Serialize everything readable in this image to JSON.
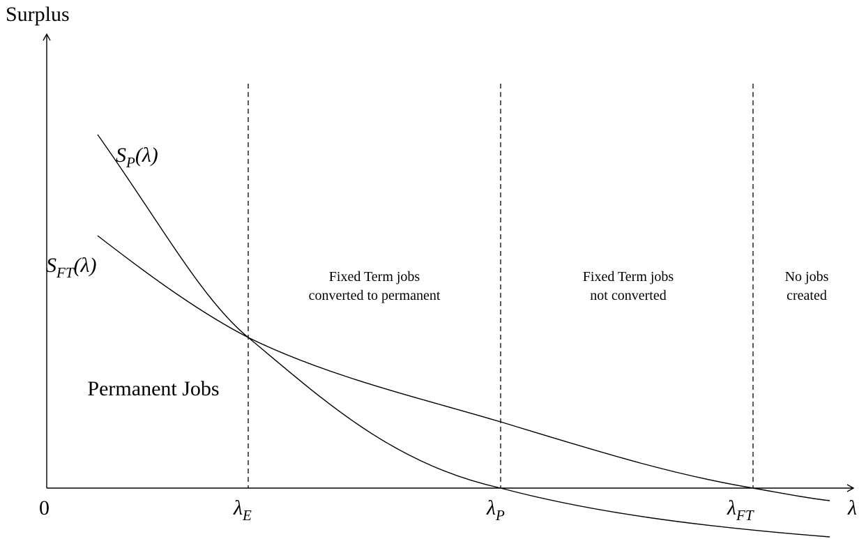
{
  "axes": {
    "y_label": "Surplus",
    "x_label": "λ",
    "origin": "0"
  },
  "thresholds": [
    {
      "base": "λ",
      "sub": "E"
    },
    {
      "base": "λ",
      "sub": "P"
    },
    {
      "base": "λ",
      "sub": "FT"
    }
  ],
  "curves": [
    {
      "base": "S",
      "sub": "P",
      "arg": "(λ)"
    },
    {
      "base": "S",
      "sub": "FT",
      "arg": "(λ)"
    }
  ],
  "regions": [
    {
      "lines": [
        "Permanent Jobs"
      ]
    },
    {
      "lines": [
        "Fixed Term jobs",
        "converted to permanent"
      ]
    },
    {
      "lines": [
        "Fixed Term jobs",
        "not converted"
      ]
    },
    {
      "lines": [
        "No jobs",
        "created"
      ]
    }
  ]
}
